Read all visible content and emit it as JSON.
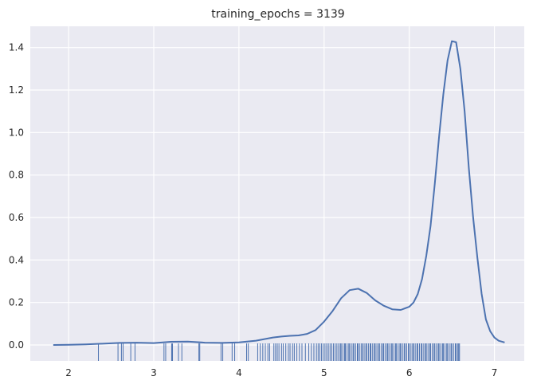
{
  "chart_data": {
    "type": "line",
    "title": "training_epochs = 3139",
    "xlabel": "",
    "ylabel": "",
    "xlim": [
      1.55,
      7.35
    ],
    "ylim": [
      -0.075,
      1.5
    ],
    "grid": true,
    "x_ticks": [
      2,
      3,
      4,
      5,
      6,
      7
    ],
    "x_tick_labels": [
      "2",
      "3",
      "4",
      "5",
      "6",
      "7"
    ],
    "y_ticks": [
      0.0,
      0.2,
      0.4,
      0.6,
      0.8,
      1.0,
      1.2,
      1.4
    ],
    "y_tick_labels": [
      "0.0",
      "0.2",
      "0.4",
      "0.6",
      "0.8",
      "1.0",
      "1.2",
      "1.4"
    ],
    "colors": {
      "line": "#4c72b0",
      "rug": "#4c72b0",
      "background": "#eaeaf2",
      "grid": "#ffffff"
    },
    "series": [
      {
        "x": [
          1.82,
          2.0,
          2.2,
          2.4,
          2.6,
          2.8,
          3.0,
          3.2,
          3.4,
          3.6,
          3.8,
          4.0,
          4.2,
          4.4,
          4.5,
          4.6,
          4.7,
          4.8,
          4.9,
          5.0,
          5.1,
          5.2,
          5.3,
          5.4,
          5.5,
          5.6,
          5.7,
          5.8,
          5.9,
          6.0,
          6.05,
          6.1,
          6.15,
          6.2,
          6.25,
          6.3,
          6.35,
          6.4,
          6.45,
          6.5,
          6.55,
          6.6,
          6.65,
          6.7,
          6.75,
          6.8,
          6.85,
          6.9,
          6.95,
          7.0,
          7.05,
          7.12
        ],
        "y": [
          0.0,
          0.001,
          0.003,
          0.006,
          0.01,
          0.011,
          0.009,
          0.015,
          0.016,
          0.011,
          0.01,
          0.012,
          0.02,
          0.035,
          0.04,
          0.043,
          0.045,
          0.052,
          0.07,
          0.11,
          0.16,
          0.22,
          0.258,
          0.265,
          0.245,
          0.21,
          0.185,
          0.168,
          0.165,
          0.18,
          0.2,
          0.24,
          0.31,
          0.42,
          0.56,
          0.76,
          0.98,
          1.18,
          1.34,
          1.43,
          1.425,
          1.3,
          1.1,
          0.83,
          0.6,
          0.41,
          0.24,
          0.12,
          0.065,
          0.035,
          0.02,
          0.012
        ]
      }
    ],
    "rug": [
      2.35,
      2.58,
      2.62,
      2.64,
      2.73,
      2.78,
      3.12,
      3.14,
      3.21,
      3.22,
      3.29,
      3.33,
      3.53,
      3.54,
      3.79,
      3.81,
      3.92,
      3.95,
      4.09,
      4.11,
      4.22,
      4.25,
      4.28,
      4.31,
      4.34,
      4.36,
      4.41,
      4.43,
      4.45,
      4.47,
      4.5,
      4.52,
      4.55,
      4.58,
      4.6,
      4.63,
      4.65,
      4.68,
      4.71,
      4.74,
      4.78,
      4.82,
      4.85,
      4.88,
      4.91,
      4.93,
      4.95,
      4.97,
      4.99,
      5.01,
      5.03,
      5.05,
      5.07,
      5.09,
      5.11,
      5.13,
      5.15,
      5.17,
      5.19,
      5.2,
      5.22,
      5.24,
      5.25,
      5.27,
      5.29,
      5.3,
      5.32,
      5.34,
      5.35,
      5.37,
      5.39,
      5.4,
      5.42,
      5.44,
      5.45,
      5.47,
      5.49,
      5.5,
      5.52,
      5.54,
      5.55,
      5.57,
      5.59,
      5.6,
      5.62,
      5.64,
      5.65,
      5.67,
      5.69,
      5.7,
      5.72,
      5.74,
      5.75,
      5.77,
      5.79,
      5.8,
      5.82,
      5.84,
      5.85,
      5.87,
      5.89,
      5.9,
      5.92,
      5.94,
      5.95,
      5.97,
      5.99,
      6.0,
      6.02,
      6.04,
      6.05,
      6.07,
      6.09,
      6.1,
      6.12,
      6.14,
      6.15,
      6.17,
      6.19,
      6.2,
      6.22,
      6.24,
      6.25,
      6.27,
      6.29,
      6.3,
      6.32,
      6.34,
      6.35,
      6.37,
      6.39,
      6.4,
      6.42,
      6.44,
      6.45,
      6.47,
      6.49,
      6.5,
      6.52,
      6.54,
      6.55,
      6.57,
      6.58,
      6.59
    ]
  }
}
